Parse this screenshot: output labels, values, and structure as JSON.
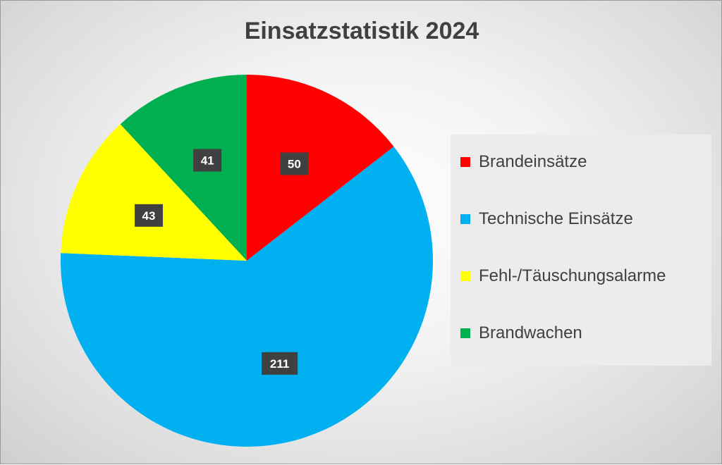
{
  "chart_data": {
    "type": "pie",
    "title": "Einsatzstatistik 2024",
    "legend_position": "right",
    "slices": [
      {
        "label": "Brandeinsätze",
        "value": 50,
        "color": "#ff0000"
      },
      {
        "label": "Technische Einsätze",
        "value": 211,
        "color": "#00b0f0"
      },
      {
        "label": "Fehl-/Täuschungsalarme",
        "value": 43,
        "color": "#ffff00"
      },
      {
        "label": "Brandwachen",
        "value": 41,
        "color": "#00b050"
      }
    ]
  }
}
